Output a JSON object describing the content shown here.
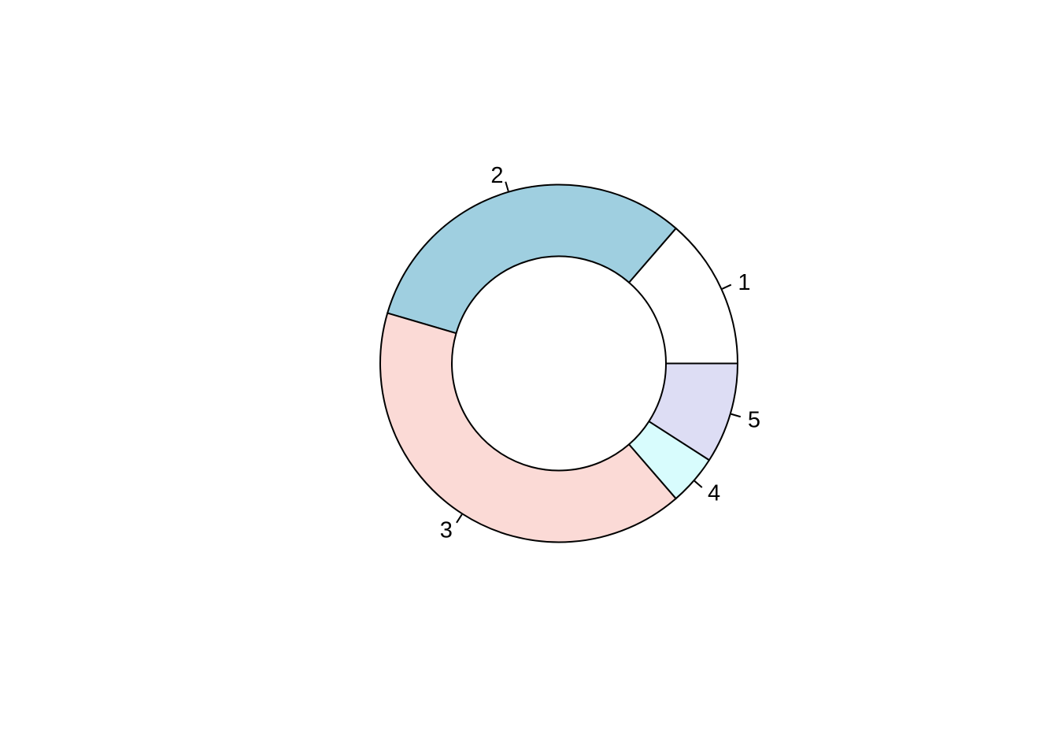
{
  "chart_data": {
    "type": "pie",
    "subtype": "donut",
    "title": "",
    "labels": [
      "1",
      "2",
      "3",
      "4",
      "5"
    ],
    "values": [
      3,
      7,
      9,
      1,
      2
    ],
    "total": 22,
    "percentages": [
      13.6,
      31.8,
      40.9,
      4.5,
      9.1
    ],
    "colors": [
      "#FFFFFF",
      "#9FCFE0",
      "#FBDAD6",
      "#D8FCFD",
      "#DDDDF4"
    ],
    "stroke_color": "#000000",
    "background_color": "#FFFFFF",
    "start_angle_deg": 0,
    "direction": "counterclockwise",
    "inner_radius_ratio": 0.6,
    "legend": "none",
    "label_style": "outside-with-tick",
    "label_font_px": 29
  }
}
